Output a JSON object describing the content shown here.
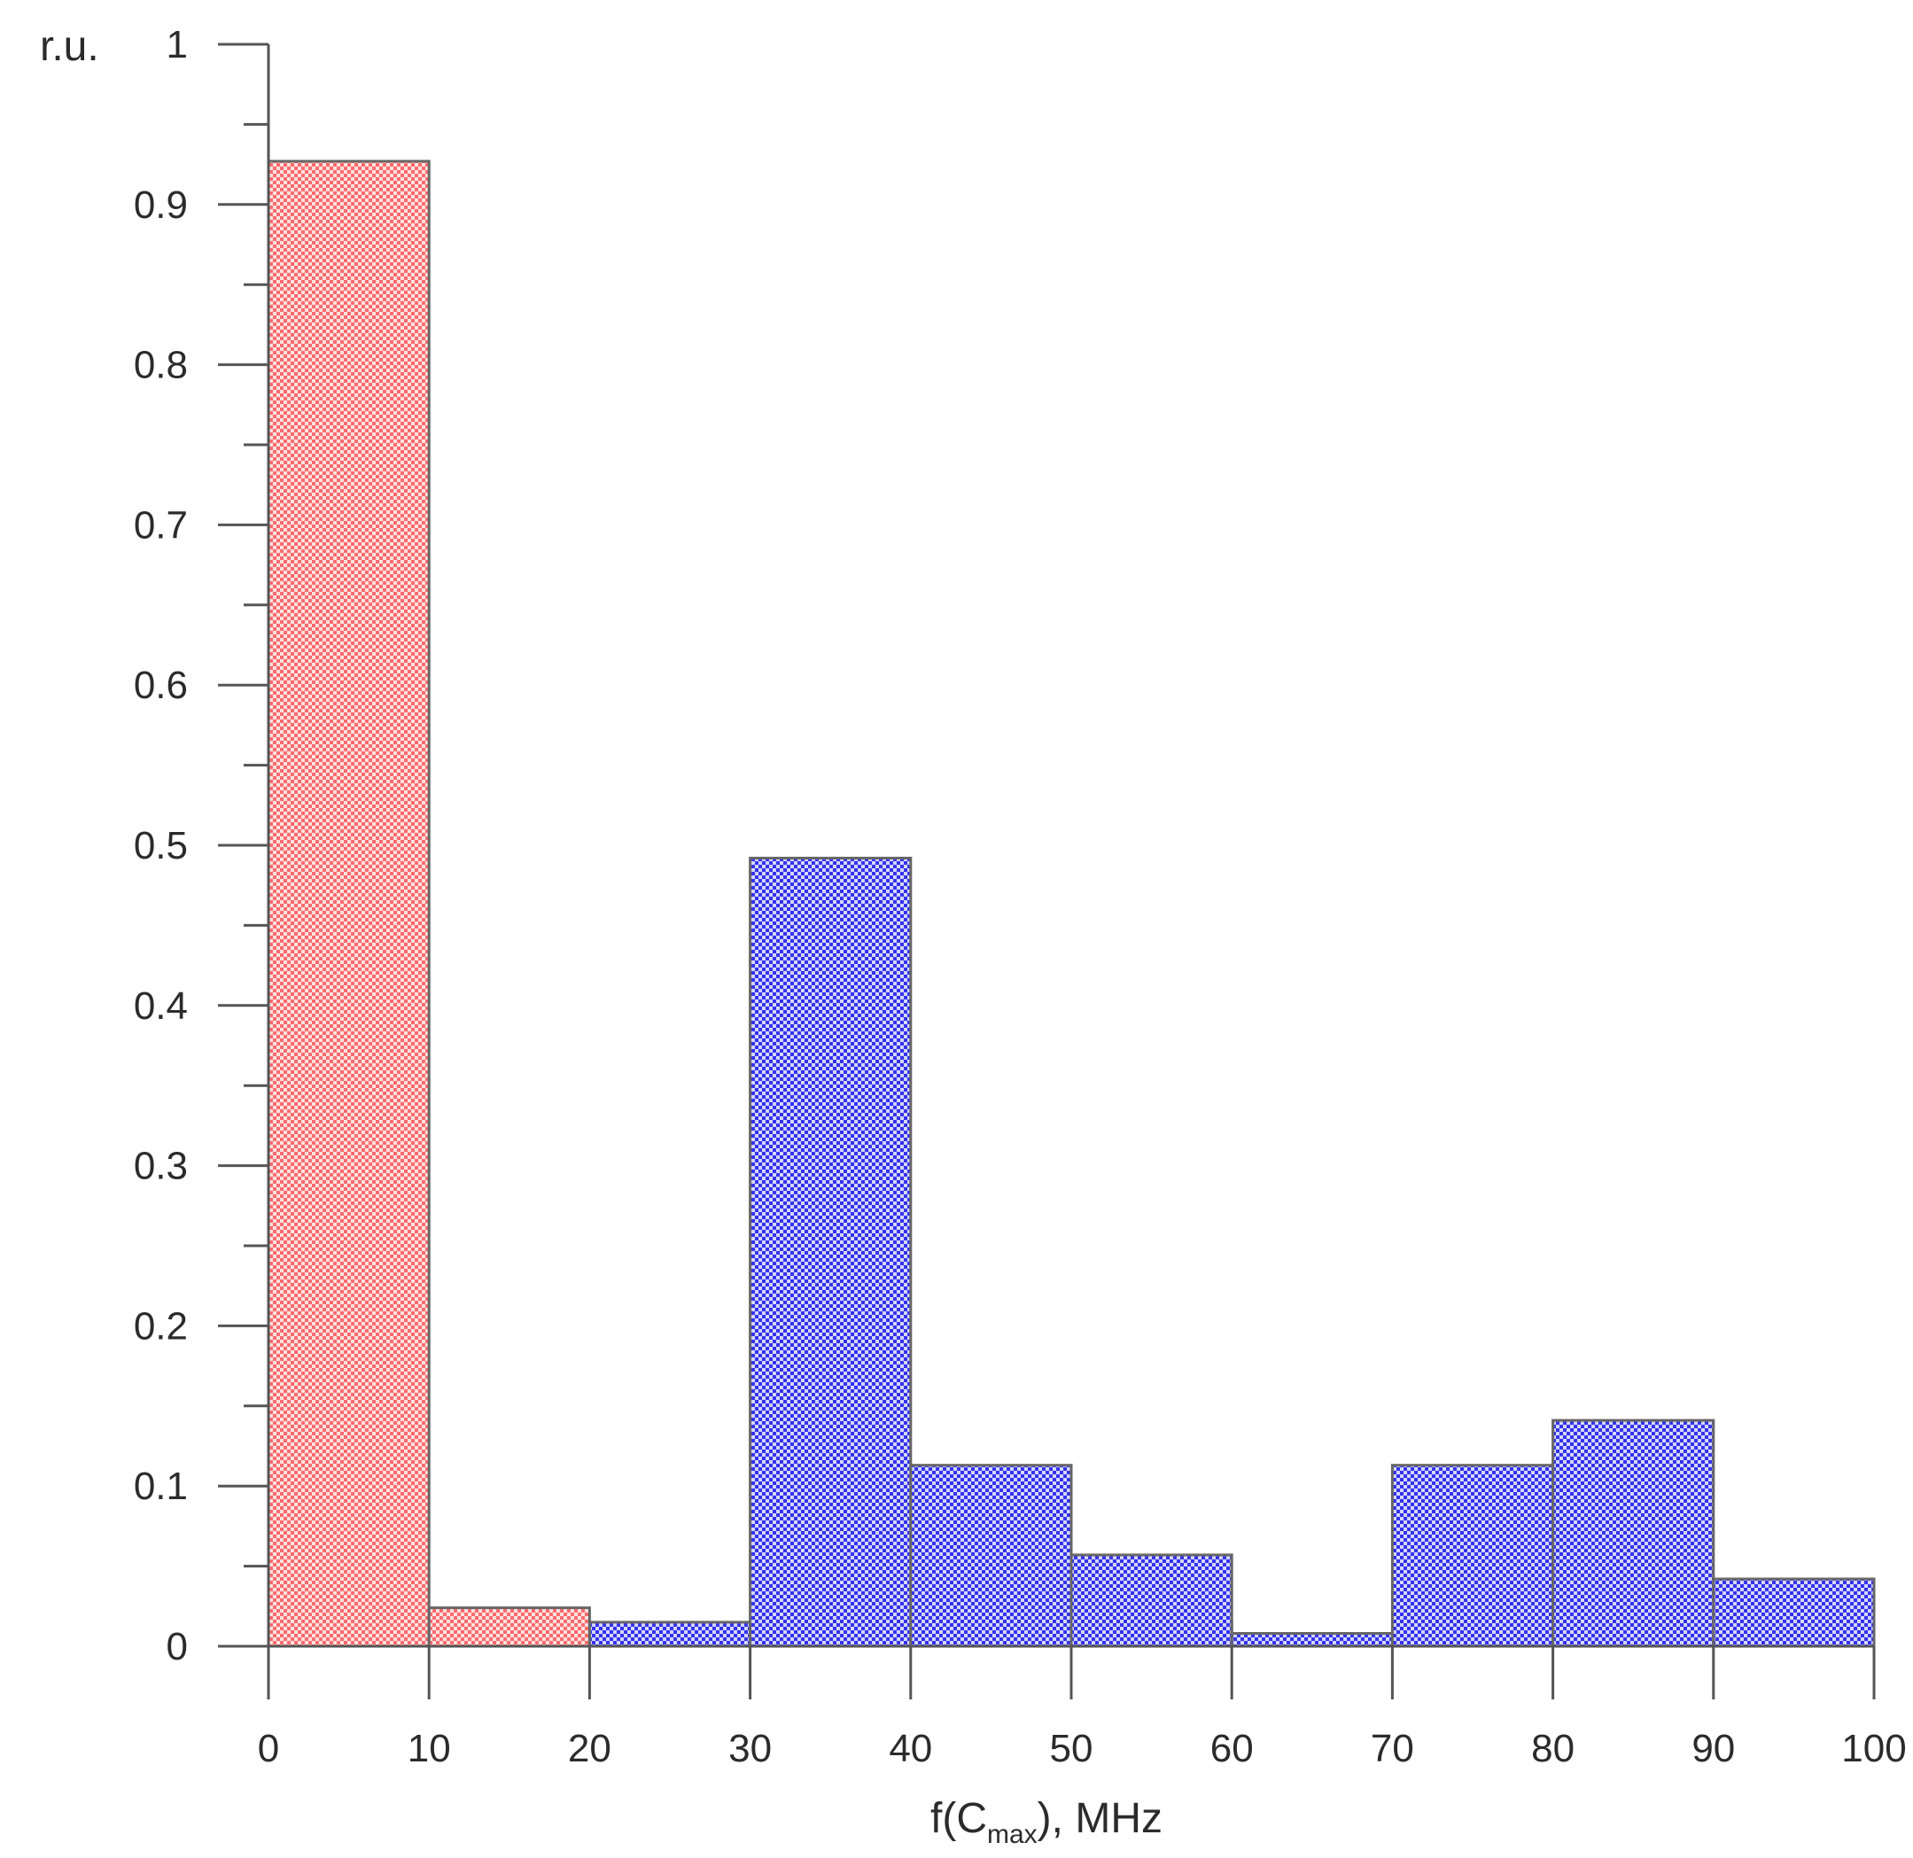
{
  "chart_data": {
    "type": "bar",
    "subtype": "overlaid-histogram",
    "title": "",
    "xlabel_main": "f(C",
    "xlabel_sub": "max",
    "xlabel_tail": "), MHz",
    "ylabel": "r.u.",
    "xlim": [
      0,
      100
    ],
    "ylim": [
      0,
      1
    ],
    "bin_edges": [
      0,
      10,
      20,
      30,
      40,
      50,
      60,
      70,
      80,
      90,
      100
    ],
    "x_ticks": [
      0,
      10,
      20,
      30,
      40,
      50,
      60,
      70,
      80,
      90,
      100
    ],
    "y_ticks": [
      0,
      0.1,
      0.2,
      0.3,
      0.4,
      0.5,
      0.6,
      0.7,
      0.8,
      0.9,
      1
    ],
    "y_tick_labels": [
      "0",
      "0.1",
      "0.2",
      "0.3",
      "0.4",
      "0.5",
      "0.6",
      "0.7",
      "0.8",
      "0.9",
      "1"
    ],
    "y_minor_step": 0.05,
    "grid": false,
    "series": [
      {
        "color": "#ff3b3b",
        "hatch": "checker",
        "values": [
          0.927,
          0.024,
          0,
          0,
          0.016,
          0.016,
          0.008,
          0,
          0.024,
          0
        ]
      },
      {
        "color": "#3b3bff",
        "hatch": "checker",
        "values": [
          0,
          0,
          0.015,
          0.492,
          0.113,
          0.057,
          0.008,
          0.113,
          0.141,
          0.042
        ]
      }
    ]
  }
}
